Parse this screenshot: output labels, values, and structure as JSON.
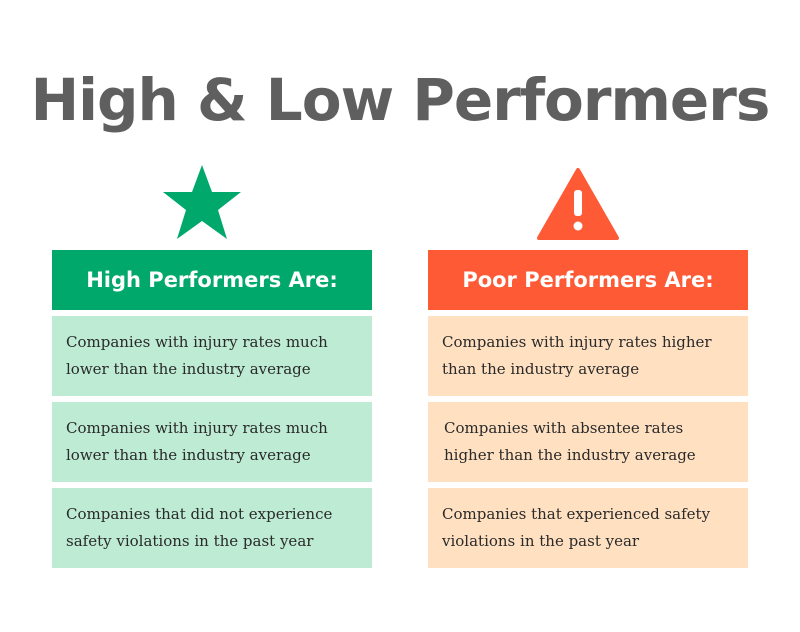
{
  "title": "High & Low Performers",
  "colors": {
    "title": "#5f5f5f",
    "high_accent": "#00a86b",
    "high_card": "#bdebd3",
    "low_accent": "#ff5a36",
    "low_card": "#ffe1c2"
  },
  "high": {
    "icon": "star-icon",
    "header": "High Performers Are:",
    "items": [
      "Companies with injury rates much lower than the industry average",
      "Companies with injury rates much lower than the industry average",
      "Companies that did not experience safety violations in the past year"
    ]
  },
  "low": {
    "icon": "warning-icon",
    "header": "Poor Performers Are:",
    "items": [
      "Companies with injury rates higher than the industry average",
      "Companies with absentee rates higher than the industry average",
      "Companies that experienced safety violations in the past year"
    ]
  }
}
